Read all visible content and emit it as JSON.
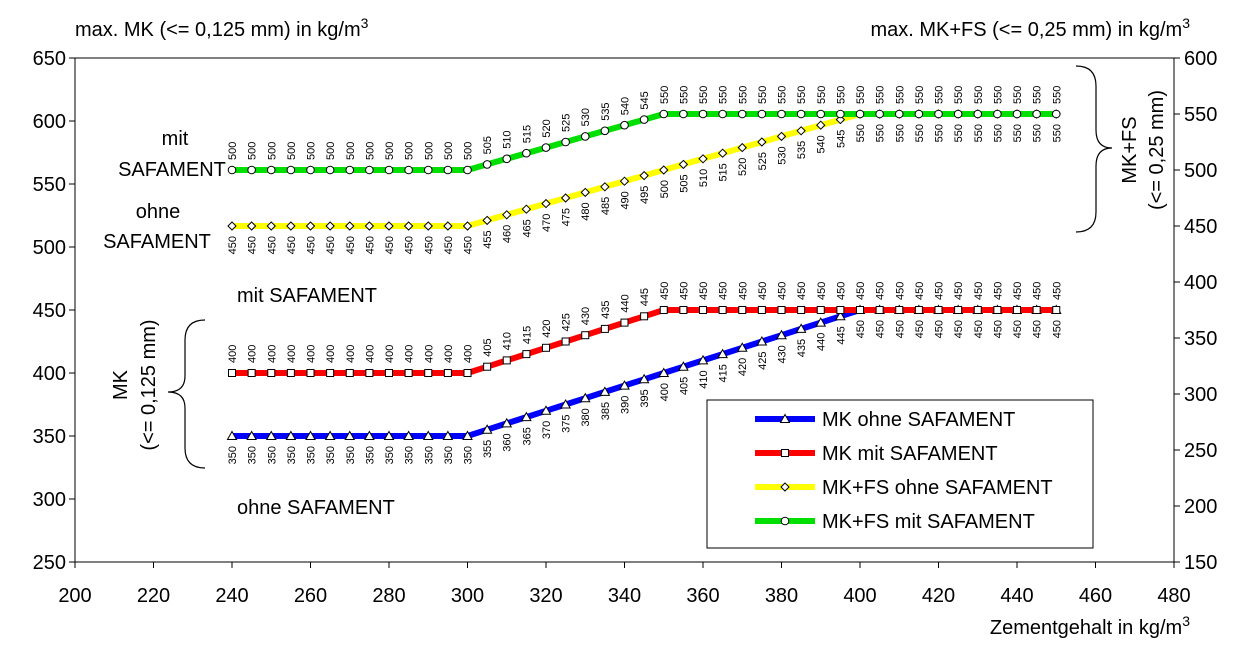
{
  "chart_data": {
    "type": "line",
    "title_left": "max. MK (<= 0,125 mm) in kg/m",
    "title_right": "max. MK+FS (<= 0,25 mm) in kg/m",
    "superscript": "3",
    "xlabel": "Zementgehalt in kg/m",
    "xlim": [
      200,
      480
    ],
    "x_ticks": [
      "200",
      "220",
      "240",
      "260",
      "280",
      "300",
      "320",
      "340",
      "360",
      "380",
      "400",
      "420",
      "440",
      "460",
      "480"
    ],
    "ylim_left": [
      250,
      650
    ],
    "y_ticks_left": [
      "250",
      "300",
      "350",
      "400",
      "450",
      "500",
      "550",
      "600",
      "650"
    ],
    "ylim_right": [
      150,
      600
    ],
    "y_ticks_right": [
      "150",
      "200",
      "250",
      "300",
      "350",
      "400",
      "450",
      "500",
      "550",
      "600"
    ],
    "x": [
      240,
      245,
      250,
      255,
      260,
      265,
      270,
      275,
      280,
      285,
      290,
      295,
      300,
      305,
      310,
      315,
      320,
      325,
      330,
      335,
      340,
      345,
      350,
      355,
      360,
      365,
      370,
      375,
      380,
      385,
      390,
      395,
      400,
      405,
      410,
      415,
      420,
      425,
      430,
      435,
      440,
      445,
      450
    ],
    "series": [
      {
        "name": "MK ohne SAFAMENT",
        "axis": "left",
        "color": "#0000ff",
        "marker": "triangle",
        "values": [
          350,
          350,
          350,
          350,
          350,
          350,
          350,
          350,
          350,
          350,
          350,
          350,
          350,
          355,
          360,
          365,
          370,
          375,
          380,
          385,
          390,
          395,
          400,
          405,
          410,
          415,
          420,
          425,
          430,
          435,
          440,
          445,
          450,
          450,
          450,
          450,
          450,
          450,
          450,
          450,
          450,
          450,
          450
        ]
      },
      {
        "name": "MK mit SAFAMENT",
        "axis": "left",
        "color": "#ff0000",
        "marker": "square",
        "values": [
          400,
          400,
          400,
          400,
          400,
          400,
          400,
          400,
          400,
          400,
          400,
          400,
          400,
          405,
          410,
          415,
          420,
          425,
          430,
          435,
          440,
          445,
          450,
          450,
          450,
          450,
          450,
          450,
          450,
          450,
          450,
          450,
          450,
          450,
          450,
          450,
          450,
          450,
          450,
          450,
          450,
          450,
          450
        ]
      },
      {
        "name": "MK+FS ohne SAFAMENT",
        "axis": "right",
        "color": "#ffff00",
        "marker": "diamond",
        "values": [
          450,
          450,
          450,
          450,
          450,
          450,
          450,
          450,
          450,
          450,
          450,
          450,
          450,
          455,
          460,
          465,
          470,
          475,
          480,
          485,
          490,
          495,
          500,
          505,
          510,
          515,
          520,
          525,
          530,
          535,
          540,
          545,
          550,
          550,
          550,
          550,
          550,
          550,
          550,
          550,
          550,
          550,
          550
        ]
      },
      {
        "name": "MK+FS mit SAFAMENT",
        "axis": "right",
        "color": "#00e000",
        "marker": "circle",
        "values": [
          500,
          500,
          500,
          500,
          500,
          500,
          500,
          500,
          500,
          500,
          500,
          500,
          500,
          505,
          510,
          515,
          520,
          525,
          530,
          535,
          540,
          545,
          550,
          550,
          550,
          550,
          550,
          550,
          550,
          550,
          550,
          550,
          550,
          550,
          550,
          550,
          550,
          550,
          550,
          550,
          550,
          550,
          550
        ]
      }
    ],
    "annotations": {
      "fs_mit_1": "mit",
      "fs_mit_2": "SAFAMENT",
      "fs_ohne_1": "ohne",
      "fs_ohne_2": "SAFAMENT",
      "mk_mit": "mit SAFAMENT",
      "mk_ohne": "ohne SAFAMENT",
      "brace_right_1": "MK+FS",
      "brace_right_2": "(<= 0,25 mm)",
      "brace_left_1": "MK",
      "brace_left_2": "(<= 0,125 mm)"
    },
    "legend_position": "bottom-right",
    "grid": false
  }
}
